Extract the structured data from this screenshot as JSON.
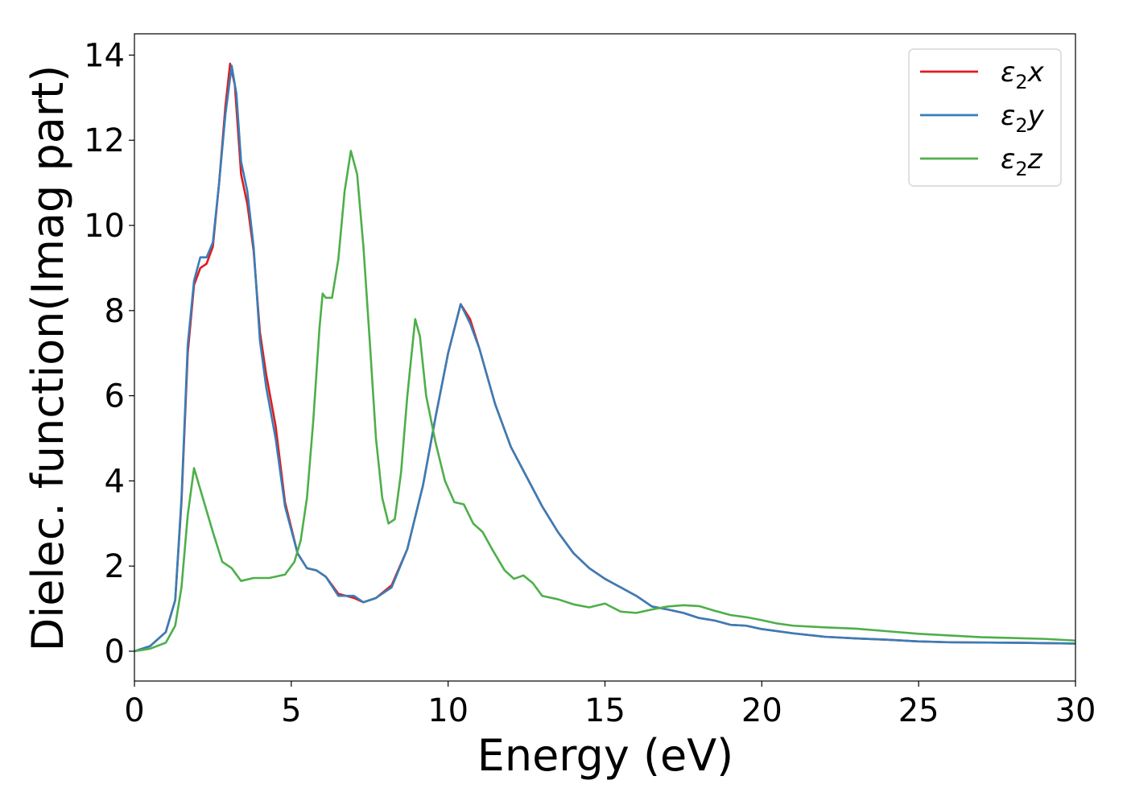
{
  "chart_data": {
    "type": "line",
    "xlabel": "Energy (eV)",
    "ylabel": "Dielec. function(Imag part)",
    "xlim": [
      0,
      30
    ],
    "ylim": [
      -0.7,
      14.5
    ],
    "x_ticks": [
      0,
      5,
      10,
      15,
      20,
      25,
      30
    ],
    "y_ticks": [
      0,
      2,
      4,
      6,
      8,
      10,
      12,
      14
    ],
    "grid": false,
    "legend_position": "top-right",
    "series": [
      {
        "name": "ε₂x",
        "legend_base": "ε",
        "legend_sub": "2",
        "legend_suffix": "x",
        "color": "#e41a1c",
        "points": [
          [
            0,
            0
          ],
          [
            0.5,
            0.12
          ],
          [
            1.0,
            0.45
          ],
          [
            1.3,
            1.2
          ],
          [
            1.5,
            3.5
          ],
          [
            1.7,
            7.0
          ],
          [
            1.9,
            8.6
          ],
          [
            2.1,
            9.0
          ],
          [
            2.3,
            9.1
          ],
          [
            2.5,
            9.5
          ],
          [
            2.7,
            11.0
          ],
          [
            2.9,
            12.8
          ],
          [
            3.05,
            13.8
          ],
          [
            3.2,
            13.3
          ],
          [
            3.4,
            11.2
          ],
          [
            3.6,
            10.5
          ],
          [
            3.8,
            9.4
          ],
          [
            4.0,
            7.5
          ],
          [
            4.2,
            6.5
          ],
          [
            4.5,
            5.3
          ],
          [
            4.8,
            3.5
          ],
          [
            5.2,
            2.3
          ],
          [
            5.5,
            1.95
          ],
          [
            5.8,
            1.9
          ],
          [
            6.1,
            1.75
          ],
          [
            6.5,
            1.35
          ],
          [
            7.0,
            1.25
          ],
          [
            7.3,
            1.15
          ],
          [
            7.7,
            1.25
          ],
          [
            8.2,
            1.55
          ],
          [
            8.7,
            2.4
          ],
          [
            9.2,
            3.9
          ],
          [
            9.6,
            5.5
          ],
          [
            10.0,
            7.0
          ],
          [
            10.4,
            8.15
          ],
          [
            10.7,
            7.8
          ],
          [
            11.0,
            7.1
          ],
          [
            11.5,
            5.8
          ],
          [
            12.0,
            4.8
          ],
          [
            12.5,
            4.1
          ],
          [
            13.0,
            3.4
          ],
          [
            13.5,
            2.8
          ],
          [
            14.0,
            2.3
          ],
          [
            14.5,
            1.95
          ],
          [
            15.0,
            1.7
          ],
          [
            15.5,
            1.5
          ],
          [
            16.0,
            1.3
          ],
          [
            16.5,
            1.05
          ],
          [
            17.0,
            0.98
          ],
          [
            17.5,
            0.9
          ],
          [
            18.0,
            0.78
          ],
          [
            18.5,
            0.72
          ],
          [
            19.0,
            0.62
          ],
          [
            19.5,
            0.6
          ],
          [
            20.0,
            0.52
          ],
          [
            21.0,
            0.42
          ],
          [
            22.0,
            0.34
          ],
          [
            23.0,
            0.3
          ],
          [
            24.0,
            0.27
          ],
          [
            25.0,
            0.23
          ],
          [
            26.0,
            0.21
          ],
          [
            28.0,
            0.2
          ],
          [
            30.0,
            0.18
          ]
        ]
      },
      {
        "name": "ε₂y",
        "legend_base": "ε",
        "legend_sub": "2",
        "legend_suffix": "y",
        "color": "#377eb8",
        "points": [
          [
            0,
            0
          ],
          [
            0.5,
            0.12
          ],
          [
            1.0,
            0.45
          ],
          [
            1.3,
            1.2
          ],
          [
            1.5,
            3.6
          ],
          [
            1.7,
            7.2
          ],
          [
            1.9,
            8.7
          ],
          [
            2.1,
            9.25
          ],
          [
            2.3,
            9.25
          ],
          [
            2.5,
            9.6
          ],
          [
            2.7,
            11.0
          ],
          [
            2.9,
            12.6
          ],
          [
            3.1,
            13.75
          ],
          [
            3.25,
            13.1
          ],
          [
            3.4,
            11.5
          ],
          [
            3.6,
            10.8
          ],
          [
            3.8,
            9.5
          ],
          [
            4.0,
            7.3
          ],
          [
            4.2,
            6.2
          ],
          [
            4.5,
            5.0
          ],
          [
            4.8,
            3.4
          ],
          [
            5.2,
            2.3
          ],
          [
            5.5,
            1.95
          ],
          [
            5.8,
            1.9
          ],
          [
            6.1,
            1.75
          ],
          [
            6.5,
            1.3
          ],
          [
            7.0,
            1.3
          ],
          [
            7.3,
            1.15
          ],
          [
            7.7,
            1.25
          ],
          [
            8.2,
            1.5
          ],
          [
            8.7,
            2.4
          ],
          [
            9.2,
            3.9
          ],
          [
            9.6,
            5.5
          ],
          [
            10.0,
            7.0
          ],
          [
            10.4,
            8.15
          ],
          [
            10.7,
            7.7
          ],
          [
            11.0,
            7.1
          ],
          [
            11.5,
            5.8
          ],
          [
            12.0,
            4.8
          ],
          [
            12.5,
            4.1
          ],
          [
            13.0,
            3.4
          ],
          [
            13.5,
            2.8
          ],
          [
            14.0,
            2.3
          ],
          [
            14.5,
            1.95
          ],
          [
            15.0,
            1.7
          ],
          [
            15.5,
            1.5
          ],
          [
            16.0,
            1.3
          ],
          [
            16.5,
            1.05
          ],
          [
            17.0,
            0.98
          ],
          [
            17.5,
            0.9
          ],
          [
            18.0,
            0.78
          ],
          [
            18.5,
            0.72
          ],
          [
            19.0,
            0.62
          ],
          [
            19.5,
            0.6
          ],
          [
            20.0,
            0.52
          ],
          [
            21.0,
            0.42
          ],
          [
            22.0,
            0.34
          ],
          [
            23.0,
            0.3
          ],
          [
            24.0,
            0.27
          ],
          [
            25.0,
            0.23
          ],
          [
            26.0,
            0.21
          ],
          [
            28.0,
            0.2
          ],
          [
            30.0,
            0.18
          ]
        ]
      },
      {
        "name": "ε₂z",
        "legend_base": "ε",
        "legend_sub": "2",
        "legend_suffix": "z",
        "color": "#4daf4a",
        "points": [
          [
            0,
            0
          ],
          [
            0.5,
            0.06
          ],
          [
            1.0,
            0.2
          ],
          [
            1.3,
            0.6
          ],
          [
            1.5,
            1.5
          ],
          [
            1.7,
            3.2
          ],
          [
            1.9,
            4.3
          ],
          [
            2.1,
            3.8
          ],
          [
            2.5,
            2.8
          ],
          [
            2.8,
            2.1
          ],
          [
            3.1,
            1.95
          ],
          [
            3.4,
            1.65
          ],
          [
            3.8,
            1.72
          ],
          [
            4.3,
            1.72
          ],
          [
            4.8,
            1.8
          ],
          [
            5.1,
            2.1
          ],
          [
            5.3,
            2.6
          ],
          [
            5.5,
            3.6
          ],
          [
            5.7,
            5.4
          ],
          [
            5.9,
            7.6
          ],
          [
            6.0,
            8.4
          ],
          [
            6.1,
            8.3
          ],
          [
            6.3,
            8.3
          ],
          [
            6.5,
            9.2
          ],
          [
            6.7,
            10.8
          ],
          [
            6.9,
            11.75
          ],
          [
            7.1,
            11.2
          ],
          [
            7.3,
            9.5
          ],
          [
            7.5,
            7.3
          ],
          [
            7.7,
            5.0
          ],
          [
            7.9,
            3.6
          ],
          [
            8.1,
            3.0
          ],
          [
            8.3,
            3.1
          ],
          [
            8.5,
            4.2
          ],
          [
            8.7,
            6.0
          ],
          [
            8.95,
            7.8
          ],
          [
            9.1,
            7.4
          ],
          [
            9.3,
            6.0
          ],
          [
            9.6,
            4.9
          ],
          [
            9.9,
            4.0
          ],
          [
            10.2,
            3.5
          ],
          [
            10.5,
            3.45
          ],
          [
            10.8,
            3.0
          ],
          [
            11.1,
            2.8
          ],
          [
            11.4,
            2.4
          ],
          [
            11.8,
            1.9
          ],
          [
            12.1,
            1.7
          ],
          [
            12.4,
            1.78
          ],
          [
            12.7,
            1.6
          ],
          [
            13.0,
            1.3
          ],
          [
            13.5,
            1.22
          ],
          [
            14.0,
            1.1
          ],
          [
            14.5,
            1.03
          ],
          [
            15.0,
            1.12
          ],
          [
            15.5,
            0.93
          ],
          [
            16.0,
            0.9
          ],
          [
            16.5,
            0.98
          ],
          [
            17.0,
            1.05
          ],
          [
            17.5,
            1.08
          ],
          [
            18.0,
            1.06
          ],
          [
            18.5,
            0.95
          ],
          [
            19.0,
            0.85
          ],
          [
            19.5,
            0.8
          ],
          [
            20.0,
            0.73
          ],
          [
            20.5,
            0.65
          ],
          [
            21.0,
            0.6
          ],
          [
            22.0,
            0.56
          ],
          [
            23.0,
            0.53
          ],
          [
            24.0,
            0.47
          ],
          [
            25.0,
            0.41
          ],
          [
            26.0,
            0.37
          ],
          [
            27.0,
            0.33
          ],
          [
            28.0,
            0.31
          ],
          [
            29.0,
            0.29
          ],
          [
            30.0,
            0.25
          ]
        ]
      }
    ]
  }
}
